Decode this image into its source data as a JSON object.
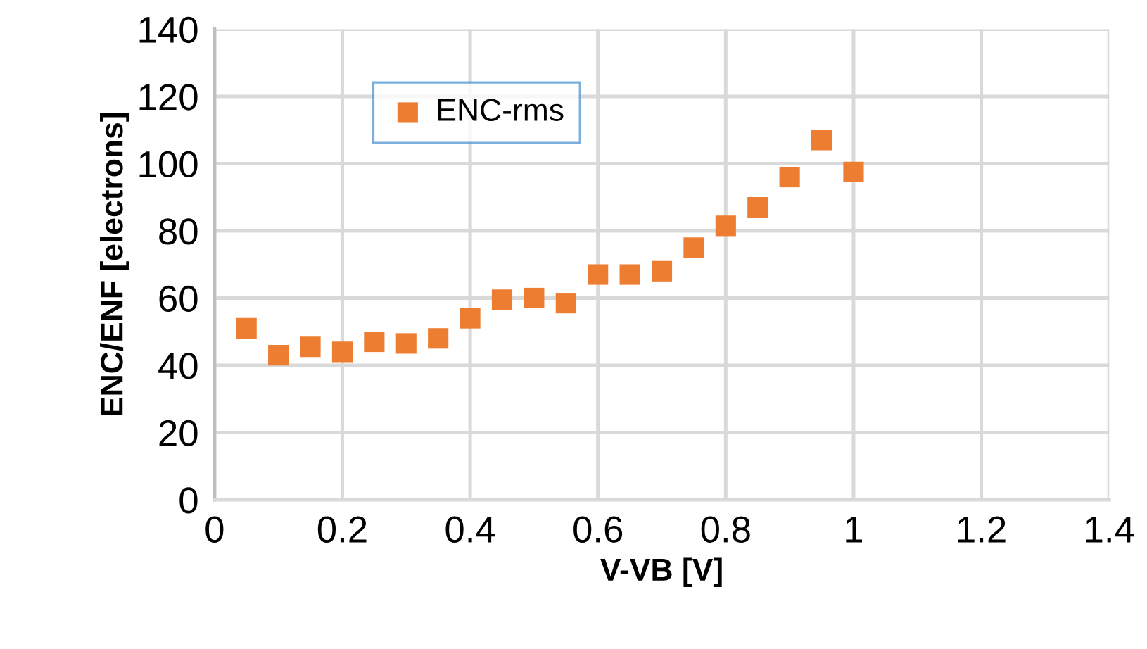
{
  "chart_data": {
    "type": "scatter",
    "xlabel": "V-VB [V]",
    "ylabel": "ENC/ENF [electrons]",
    "x": [
      0.05,
      0.1,
      0.15,
      0.2,
      0.25,
      0.3,
      0.35,
      0.4,
      0.45,
      0.5,
      0.55,
      0.6,
      0.65,
      0.7,
      0.75,
      0.8,
      0.85,
      0.9,
      0.95,
      1.0
    ],
    "series": [
      {
        "name": "ENC-rms",
        "color": "#ed7d31",
        "values": [
          51,
          43,
          45.5,
          44,
          47,
          46.5,
          48,
          54,
          59.5,
          60,
          58.5,
          67,
          67,
          68,
          75,
          81.5,
          87,
          96,
          107,
          97.5
        ]
      }
    ],
    "xlim": [
      0,
      1.4
    ],
    "xticks": [
      0,
      0.2,
      0.4,
      0.6,
      0.8,
      1,
      1.2,
      1.4
    ],
    "ylim": [
      0,
      140
    ],
    "yticks": [
      0,
      20,
      40,
      60,
      80,
      100,
      120,
      140
    ],
    "grid": true,
    "legend": "top left",
    "marker": "square"
  }
}
